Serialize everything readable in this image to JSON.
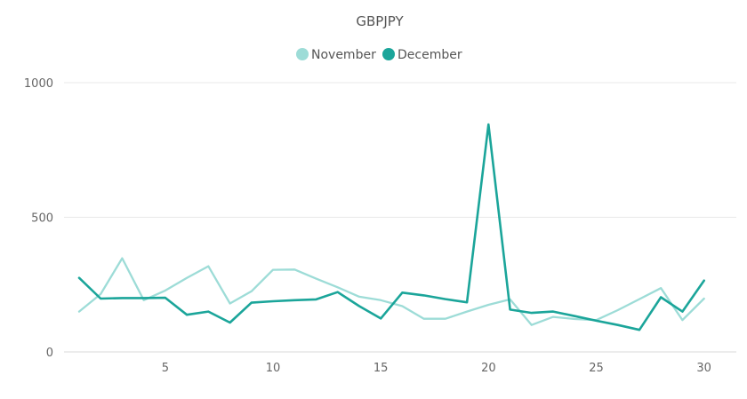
{
  "chart_data": {
    "type": "line",
    "title": "GBPJPY",
    "xlabel": "",
    "ylabel": "",
    "x": [
      1,
      2,
      3,
      4,
      5,
      6,
      7,
      8,
      9,
      10,
      11,
      12,
      13,
      14,
      15,
      16,
      17,
      18,
      19,
      20,
      21,
      22,
      23,
      24,
      25,
      26,
      27,
      28,
      29,
      30
    ],
    "xticks": [
      5,
      10,
      15,
      20,
      25,
      30
    ],
    "yticks": [
      0,
      500,
      1000
    ],
    "xlim": [
      0.3,
      31.5
    ],
    "ylim": [
      0,
      1000
    ],
    "grid": true,
    "legend_position": "top-center",
    "series": [
      {
        "name": "November",
        "color": "#9ddcd7",
        "values": [
          150,
          215,
          348,
          192,
          228,
          275,
          318,
          180,
          225,
          305,
          306,
          272,
          240,
          205,
          192,
          170,
          123,
          123,
          150,
          175,
          195,
          100,
          130,
          122,
          118,
          155,
          196,
          237,
          118,
          198
        ]
      },
      {
        "name": "December",
        "color": "#1ba59a",
        "values": [
          275,
          198,
          200,
          200,
          201,
          138,
          150,
          109,
          183,
          188,
          192,
          195,
          222,
          170,
          124,
          220,
          210,
          196,
          184,
          845,
          157,
          145,
          150,
          133,
          116,
          100,
          82,
          203,
          150,
          265
        ]
      }
    ]
  }
}
